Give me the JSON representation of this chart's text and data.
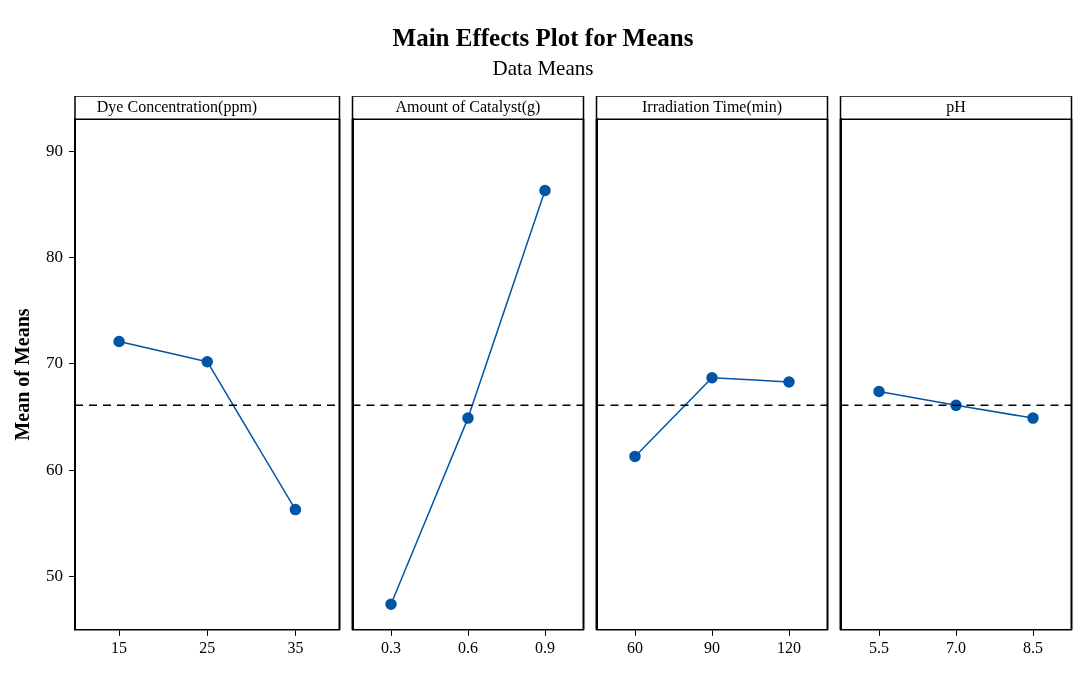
{
  "chart_data": [
    {
      "type": "other",
      "title": "Main Effects Plot for Means",
      "subtitle": "Data Means"
    },
    {
      "type": "line",
      "title": "Dye Concentration(ppm)",
      "ylabel": "Mean of Means",
      "categories": [
        "15",
        "25",
        "35"
      ],
      "series": [
        {
          "color": "#0055a5",
          "values": [
            72.1,
            70.2,
            56.3
          ]
        }
      ],
      "ylim": [
        45,
        93
      ],
      "yticks": [
        50,
        60,
        70,
        80,
        90
      ],
      "ref_lines": [
        {
          "axis": "y",
          "value": 66.1,
          "color": "#000000",
          "line_style": "dashed"
        }
      ],
      "marker": "circle",
      "line_style": "solid"
    },
    {
      "type": "line",
      "title": "Amount of Catalyst(g)",
      "categories": [
        "0.3",
        "0.6",
        "0.9"
      ],
      "series": [
        {
          "color": "#0055a5",
          "values": [
            47.4,
            64.9,
            86.3
          ]
        }
      ],
      "ylim": [
        45,
        93
      ],
      "yticks": [
        50,
        60,
        70,
        80,
        90
      ],
      "tick_labels": "x",
      "ref_lines": [
        {
          "axis": "y",
          "value": 66.1,
          "color": "#000000",
          "line_style": "dashed"
        }
      ],
      "marker": "circle",
      "line_style": "solid"
    },
    {
      "type": "line",
      "title": "Irradiation Time(min)",
      "categories": [
        "60",
        "90",
        "120"
      ],
      "series": [
        {
          "color": "#0055a5",
          "values": [
            61.3,
            68.7,
            68.3
          ]
        }
      ],
      "ylim": [
        45,
        93
      ],
      "yticks": [
        50,
        60,
        70,
        80,
        90
      ],
      "tick_labels": "x",
      "ref_lines": [
        {
          "axis": "y",
          "value": 66.1,
          "color": "#000000",
          "line_style": "dashed"
        }
      ],
      "marker": "circle",
      "line_style": "solid"
    },
    {
      "type": "line",
      "title": "pH",
      "categories": [
        "5.5",
        "7.0",
        "8.5"
      ],
      "series": [
        {
          "color": "#0055a5",
          "values": [
            67.4,
            66.1,
            64.9
          ]
        }
      ],
      "ylim": [
        45,
        93
      ],
      "yticks": [
        50,
        60,
        70,
        80,
        90
      ],
      "tick_labels": "x",
      "ref_lines": [
        {
          "axis": "y",
          "value": 66.1,
          "color": "#000000",
          "line_style": "dashed"
        }
      ],
      "marker": "circle",
      "line_style": "solid"
    }
  ]
}
